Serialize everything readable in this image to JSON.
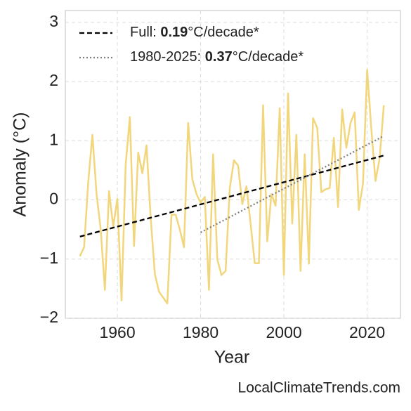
{
  "chart_data": {
    "type": "line",
    "xlabel": "Year",
    "ylabel": "Anomaly (°C)",
    "source": "LocalClimateTrends.com",
    "x": [
      1951,
      1952,
      1953,
      1954,
      1955,
      1956,
      1957,
      1958,
      1959,
      1960,
      1961,
      1962,
      1963,
      1964,
      1965,
      1966,
      1967,
      1968,
      1969,
      1970,
      1971,
      1972,
      1973,
      1974,
      1975,
      1976,
      1977,
      1978,
      1979,
      1980,
      1981,
      1982,
      1983,
      1984,
      1985,
      1986,
      1987,
      1988,
      1989,
      1990,
      1991,
      1992,
      1993,
      1994,
      1995,
      1996,
      1997,
      1998,
      1999,
      2000,
      2001,
      2002,
      2003,
      2004,
      2005,
      2006,
      2007,
      2008,
      2009,
      2010,
      2011,
      2012,
      2013,
      2014,
      2015,
      2016,
      2017,
      2018,
      2019,
      2020,
      2021,
      2022,
      2023,
      2024
    ],
    "values": [
      -0.95,
      -0.8,
      0.3,
      1.1,
      0.1,
      -0.5,
      -1.52,
      0.15,
      -0.45,
      0.02,
      -1.7,
      0.6,
      1.4,
      -0.78,
      0.8,
      0.45,
      0.92,
      -0.3,
      -1.25,
      -1.55,
      -1.65,
      -1.75,
      -0.25,
      -0.25,
      -0.5,
      -0.8,
      1.3,
      0.35,
      0.1,
      -0.05,
      0.05,
      -1.52,
      0.77,
      -1.0,
      -1.27,
      -1.2,
      0.2,
      0.67,
      0.58,
      -0.07,
      0.23,
      -0.4,
      -1.07,
      -1.07,
      1.6,
      -0.7,
      0.1,
      -0.1,
      1.55,
      -1.27,
      1.8,
      -0.4,
      1.1,
      -1.2,
      0.77,
      -1.08,
      1.38,
      1.22,
      0.13,
      0.18,
      0.2,
      1.05,
      -0.12,
      1.53,
      0.88,
      1.3,
      1.48,
      -0.17,
      0.28,
      2.2,
      1.2,
      0.32,
      0.7,
      1.6
    ],
    "color": "#f2d67c",
    "trends": [
      {
        "name": "Full: ",
        "slope": 0.19,
        "unit": "°C/decade*",
        "x": [
          1951,
          2024
        ],
        "values": [
          -0.62,
          0.75
        ],
        "color": "#000000",
        "dash": "7,4"
      },
      {
        "name": "1980-2025: ",
        "slope": 0.37,
        "unit": "°C/decade*",
        "x": [
          1980,
          2024
        ],
        "values": [
          -0.55,
          1.08
        ],
        "color": "#808080",
        "dash": "2,3"
      }
    ],
    "xlim": [
      1947.5,
      2028
    ],
    "xticks": [
      1960,
      1980,
      2000,
      2020
    ],
    "ylim": [
      -2,
      3.2
    ],
    "yticks": [
      {
        "value": -2,
        "label": "−2"
      },
      {
        "value": -1,
        "label": "−1"
      },
      0,
      1,
      2,
      3
    ],
    "grid": true,
    "legend": "upper left"
  }
}
